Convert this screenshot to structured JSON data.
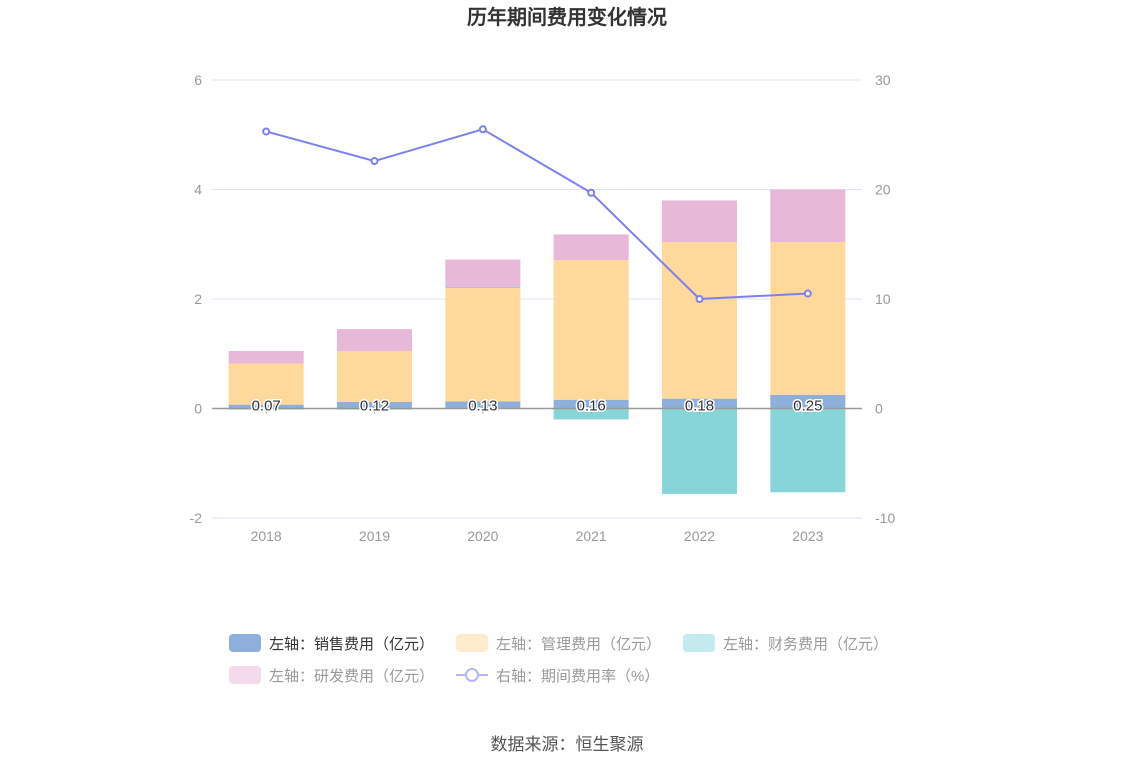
{
  "chart_data": {
    "type": "bar",
    "title": "历年期间费用变化情况",
    "categories": [
      "2018",
      "2019",
      "2020",
      "2021",
      "2022",
      "2023"
    ],
    "left_axis": {
      "ylim": [
        -2,
        6
      ],
      "ticks": [
        -2,
        0,
        2,
        4,
        6
      ]
    },
    "right_axis": {
      "ylim": [
        -10,
        30
      ],
      "ticks": [
        -10,
        0,
        10,
        20,
        30
      ]
    },
    "grid": true,
    "legend_placement": "bottom",
    "series": [
      {
        "name": "左轴：销售费用（亿元）",
        "type": "bar",
        "axis": "left",
        "color": "#8eaedb",
        "values": [
          0.07,
          0.12,
          0.13,
          0.16,
          0.18,
          0.25
        ],
        "labels": [
          "0.07",
          "0.12",
          "0.13",
          "0.16",
          "0.18",
          "0.25"
        ]
      },
      {
        "name": "左轴：管理费用（亿元）",
        "type": "bar",
        "axis": "left",
        "color": "#fed99b",
        "values": [
          0.75,
          0.93,
          2.07,
          2.55,
          2.86,
          2.79
        ]
      },
      {
        "name": "左轴：财务费用（亿元）",
        "type": "bar",
        "axis": "left",
        "color": "#88d5d9",
        "values": [
          -0.02,
          -0.02,
          0.02,
          -0.2,
          -1.56,
          -1.53
        ]
      },
      {
        "name": "左轴：研发费用（亿元）",
        "type": "bar",
        "axis": "left",
        "color": "#e8b8d8",
        "values": [
          0.23,
          0.4,
          0.5,
          0.47,
          0.76,
          0.96
        ]
      },
      {
        "name": "右轴：期间费用率（%）",
        "type": "line",
        "axis": "right",
        "color": "#7b7ff0",
        "values": [
          25.3,
          22.6,
          25.5,
          19.7,
          10.0,
          10.5
        ]
      }
    ]
  },
  "source": "数据来源：恒生聚源"
}
